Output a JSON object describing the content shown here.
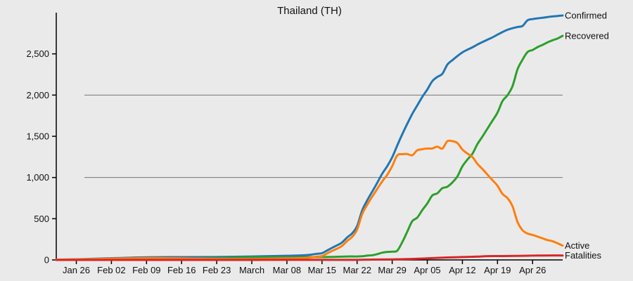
{
  "chart_data": {
    "type": "line",
    "title": "Thailand (TH)",
    "xlabel": "",
    "ylabel": "",
    "x_start": "2020-01-22",
    "x_end": "2020-05-02",
    "x_ticks": [
      {
        "date": "2020-01-26",
        "label": "Jan 26"
      },
      {
        "date": "2020-02-02",
        "label": "Feb 02"
      },
      {
        "date": "2020-02-09",
        "label": "Feb 09"
      },
      {
        "date": "2020-02-16",
        "label": "Feb 16"
      },
      {
        "date": "2020-02-23",
        "label": "Feb 23"
      },
      {
        "date": "2020-03-01",
        "label": "March"
      },
      {
        "date": "2020-03-08",
        "label": "Mar 08"
      },
      {
        "date": "2020-03-15",
        "label": "Mar 15"
      },
      {
        "date": "2020-03-22",
        "label": "Mar 22"
      },
      {
        "date": "2020-03-29",
        "label": "Mar 29"
      },
      {
        "date": "2020-04-05",
        "label": "Apr 05"
      },
      {
        "date": "2020-04-12",
        "label": "Apr 12"
      },
      {
        "date": "2020-04-19",
        "label": "Apr 19"
      },
      {
        "date": "2020-04-26",
        "label": "Apr 26"
      }
    ],
    "ylim": [
      0,
      3000
    ],
    "y_ticks": [
      {
        "value": 0,
        "label": "0"
      },
      {
        "value": 500,
        "label": "500"
      },
      {
        "value": 1000,
        "label": "1,000"
      },
      {
        "value": 1500,
        "label": "1,500"
      },
      {
        "value": 2000,
        "label": "2,000"
      },
      {
        "value": 2500,
        "label": "2,500"
      }
    ],
    "gridlines_y": [
      1000,
      2000
    ],
    "series": [
      {
        "name": "Confirmed",
        "color": "#1f77b4",
        "points": [
          [
            "2020-01-22",
            4
          ],
          [
            "2020-01-26",
            8
          ],
          [
            "2020-02-01",
            19
          ],
          [
            "2020-02-09",
            32
          ],
          [
            "2020-02-16",
            34
          ],
          [
            "2020-02-23",
            35
          ],
          [
            "2020-03-01",
            42
          ],
          [
            "2020-03-08",
            50
          ],
          [
            "2020-03-12",
            59
          ],
          [
            "2020-03-14",
            75
          ],
          [
            "2020-03-15",
            82
          ],
          [
            "2020-03-16",
            114
          ],
          [
            "2020-03-17",
            147
          ],
          [
            "2020-03-18",
            177
          ],
          [
            "2020-03-19",
            212
          ],
          [
            "2020-03-20",
            272
          ],
          [
            "2020-03-21",
            322
          ],
          [
            "2020-03-22",
            411
          ],
          [
            "2020-03-23",
            599
          ],
          [
            "2020-03-24",
            721
          ],
          [
            "2020-03-25",
            827
          ],
          [
            "2020-03-26",
            934
          ],
          [
            "2020-03-27",
            1045
          ],
          [
            "2020-03-28",
            1136
          ],
          [
            "2020-03-29",
            1245
          ],
          [
            "2020-03-30",
            1388
          ],
          [
            "2020-03-31",
            1524
          ],
          [
            "2020-04-01",
            1651
          ],
          [
            "2020-04-02",
            1771
          ],
          [
            "2020-04-03",
            1875
          ],
          [
            "2020-04-04",
            1978
          ],
          [
            "2020-04-05",
            2067
          ],
          [
            "2020-04-06",
            2169
          ],
          [
            "2020-04-07",
            2220
          ],
          [
            "2020-04-08",
            2258
          ],
          [
            "2020-04-09",
            2369
          ],
          [
            "2020-04-10",
            2423
          ],
          [
            "2020-04-11",
            2473
          ],
          [
            "2020-04-12",
            2518
          ],
          [
            "2020-04-13",
            2551
          ],
          [
            "2020-04-14",
            2579
          ],
          [
            "2020-04-15",
            2613
          ],
          [
            "2020-04-16",
            2643
          ],
          [
            "2020-04-17",
            2672
          ],
          [
            "2020-04-18",
            2700
          ],
          [
            "2020-04-19",
            2733
          ],
          [
            "2020-04-20",
            2765
          ],
          [
            "2020-04-21",
            2792
          ],
          [
            "2020-04-22",
            2811
          ],
          [
            "2020-04-23",
            2826
          ],
          [
            "2020-04-24",
            2839
          ],
          [
            "2020-04-25",
            2907
          ],
          [
            "2020-04-26",
            2922
          ],
          [
            "2020-04-27",
            2931
          ],
          [
            "2020-04-28",
            2938
          ],
          [
            "2020-04-29",
            2947
          ],
          [
            "2020-04-30",
            2954
          ],
          [
            "2020-05-01",
            2960
          ],
          [
            "2020-05-02",
            2966
          ]
        ]
      },
      {
        "name": "Recovered",
        "color": "#2ca02c",
        "points": [
          [
            "2020-01-22",
            0
          ],
          [
            "2020-01-26",
            2
          ],
          [
            "2020-02-01",
            5
          ],
          [
            "2020-02-09",
            10
          ],
          [
            "2020-02-16",
            14
          ],
          [
            "2020-02-23",
            22
          ],
          [
            "2020-03-01",
            31
          ],
          [
            "2020-03-08",
            31
          ],
          [
            "2020-03-15",
            35
          ],
          [
            "2020-03-17",
            37
          ],
          [
            "2020-03-20",
            42
          ],
          [
            "2020-03-22",
            42
          ],
          [
            "2020-03-23",
            44
          ],
          [
            "2020-03-24",
            52
          ],
          [
            "2020-03-25",
            57
          ],
          [
            "2020-03-26",
            70
          ],
          [
            "2020-03-27",
            88
          ],
          [
            "2020-03-28",
            97
          ],
          [
            "2020-03-29",
            100
          ],
          [
            "2020-03-30",
            112
          ],
          [
            "2020-03-31",
            215
          ],
          [
            "2020-04-01",
            342
          ],
          [
            "2020-04-02",
            470
          ],
          [
            "2020-04-03",
            514
          ],
          [
            "2020-04-04",
            604
          ],
          [
            "2020-04-05",
            685
          ],
          [
            "2020-04-06",
            782
          ],
          [
            "2020-04-07",
            808
          ],
          [
            "2020-04-08",
            870
          ],
          [
            "2020-04-09",
            888
          ],
          [
            "2020-04-10",
            940
          ],
          [
            "2020-04-11",
            1013
          ],
          [
            "2020-04-12",
            1135
          ],
          [
            "2020-04-13",
            1218
          ],
          [
            "2020-04-14",
            1288
          ],
          [
            "2020-04-15",
            1405
          ],
          [
            "2020-04-16",
            1497
          ],
          [
            "2020-04-17",
            1593
          ],
          [
            "2020-04-18",
            1689
          ],
          [
            "2020-04-19",
            1787
          ],
          [
            "2020-04-20",
            1928
          ],
          [
            "2020-04-21",
            1999
          ],
          [
            "2020-04-22",
            2108
          ],
          [
            "2020-04-23",
            2313
          ],
          [
            "2020-04-24",
            2430
          ],
          [
            "2020-04-25",
            2523
          ],
          [
            "2020-04-26",
            2547
          ],
          [
            "2020-04-27",
            2582
          ],
          [
            "2020-04-28",
            2609
          ],
          [
            "2020-04-29",
            2640
          ],
          [
            "2020-04-30",
            2665
          ],
          [
            "2020-05-01",
            2687
          ],
          [
            "2020-05-02",
            2719
          ]
        ]
      },
      {
        "name": "Active",
        "color": "#ff7f0e",
        "points": [
          [
            "2020-01-22",
            4
          ],
          [
            "2020-01-26",
            6
          ],
          [
            "2020-02-01",
            14
          ],
          [
            "2020-02-09",
            22
          ],
          [
            "2020-02-16",
            20
          ],
          [
            "2020-02-23",
            13
          ],
          [
            "2020-03-01",
            11
          ],
          [
            "2020-03-08",
            18
          ],
          [
            "2020-03-12",
            25
          ],
          [
            "2020-03-14",
            40
          ],
          [
            "2020-03-15",
            46
          ],
          [
            "2020-03-16",
            78
          ],
          [
            "2020-03-17",
            109
          ],
          [
            "2020-03-18",
            136
          ],
          [
            "2020-03-19",
            170
          ],
          [
            "2020-03-20",
            229
          ],
          [
            "2020-03-21",
            279
          ],
          [
            "2020-03-22",
            368
          ],
          [
            "2020-03-23",
            554
          ],
          [
            "2020-03-24",
            668
          ],
          [
            "2020-03-25",
            766
          ],
          [
            "2020-03-26",
            859
          ],
          [
            "2020-03-27",
            953
          ],
          [
            "2020-03-28",
            1032
          ],
          [
            "2020-03-29",
            1137
          ],
          [
            "2020-03-30",
            1268
          ],
          [
            "2020-03-31",
            1283
          ],
          [
            "2020-04-01",
            1285
          ],
          [
            "2020-04-02",
            1270
          ],
          [
            "2020-04-03",
            1330
          ],
          [
            "2020-04-04",
            1343
          ],
          [
            "2020-04-05",
            1352
          ],
          [
            "2020-04-06",
            1352
          ],
          [
            "2020-04-07",
            1375
          ],
          [
            "2020-04-08",
            1351
          ],
          [
            "2020-04-09",
            1440
          ],
          [
            "2020-04-10",
            1441
          ],
          [
            "2020-04-11",
            1418
          ],
          [
            "2020-04-12",
            1340
          ],
          [
            "2020-04-13",
            1290
          ],
          [
            "2020-04-14",
            1248
          ],
          [
            "2020-04-15",
            1165
          ],
          [
            "2020-04-16",
            1103
          ],
          [
            "2020-04-17",
            1035
          ],
          [
            "2020-04-18",
            967
          ],
          [
            "2020-04-19",
            900
          ],
          [
            "2020-04-20",
            800
          ],
          [
            "2020-04-21",
            750
          ],
          [
            "2020-04-22",
            650
          ],
          [
            "2020-04-23",
            460
          ],
          [
            "2020-04-24",
            360
          ],
          [
            "2020-04-25",
            320
          ],
          [
            "2020-04-26",
            303
          ],
          [
            "2020-04-27",
            283
          ],
          [
            "2020-04-28",
            262
          ],
          [
            "2020-04-29",
            240
          ],
          [
            "2020-04-30",
            227
          ],
          [
            "2020-05-01",
            201
          ],
          [
            "2020-05-02",
            174
          ]
        ]
      },
      {
        "name": "Fatalities",
        "color": "#d62728",
        "points": [
          [
            "2020-01-22",
            0
          ],
          [
            "2020-02-29",
            0
          ],
          [
            "2020-03-01",
            1
          ],
          [
            "2020-03-15",
            1
          ],
          [
            "2020-03-22",
            1
          ],
          [
            "2020-03-25",
            4
          ],
          [
            "2020-03-29",
            7
          ],
          [
            "2020-04-01",
            10
          ],
          [
            "2020-04-05",
            20
          ],
          [
            "2020-04-09",
            30
          ],
          [
            "2020-04-12",
            35
          ],
          [
            "2020-04-15",
            40
          ],
          [
            "2020-04-17",
            46
          ],
          [
            "2020-04-20",
            47
          ],
          [
            "2020-04-24",
            50
          ],
          [
            "2020-04-28",
            54
          ],
          [
            "2020-05-02",
            54
          ]
        ]
      }
    ]
  }
}
